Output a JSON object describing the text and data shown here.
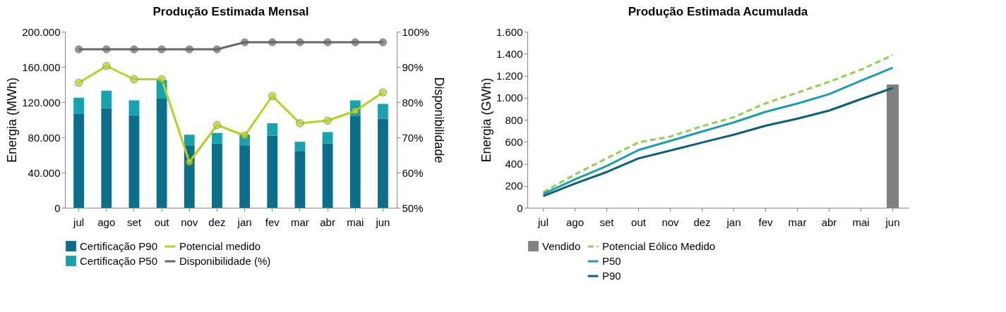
{
  "chart_data": [
    {
      "type": "bar",
      "title": "Produção Estimada Mensal",
      "ylabel": "Energia (MWh)",
      "y2label": "Disponibilidade",
      "categories": [
        "jul",
        "ago",
        "set",
        "out",
        "nov",
        "dez",
        "jan",
        "fev",
        "mar",
        "abr",
        "mai",
        "jun"
      ],
      "stacked": true,
      "legend": "bottom",
      "ylim": [
        0,
        200000
      ],
      "yticks": [
        {
          "value": 0,
          "label": "0"
        },
        {
          "value": 40000,
          "label": "40.000"
        },
        {
          "value": 80000,
          "label": "80.000"
        },
        {
          "value": 120000,
          "label": "120.000"
        },
        {
          "value": 160000,
          "label": "160.000"
        },
        {
          "value": 200000,
          "label": "200.000"
        }
      ],
      "y2lim": [
        50,
        100
      ],
      "y2ticks": [
        {
          "value": 50,
          "label": "50%"
        },
        {
          "value": 60,
          "label": "60%"
        },
        {
          "value": 70,
          "label": "70%"
        },
        {
          "value": 80,
          "label": "80%"
        },
        {
          "value": 90,
          "label": "90%"
        },
        {
          "value": 100,
          "label": "100%"
        }
      ],
      "series": [
        {
          "name": "Certificação P90",
          "color": "#0a6f8a",
          "values": [
            107000,
            113000,
            105000,
            124000,
            71000,
            73000,
            71000,
            82000,
            64000,
            73000,
            104000,
            101000
          ]
        },
        {
          "name": "Certificação P50",
          "color": "#15a3b1",
          "values": [
            18000,
            20000,
            17000,
            21000,
            12000,
            12000,
            12000,
            14000,
            11000,
            13000,
            18000,
            17000
          ]
        },
        {
          "name": "Potencial medido",
          "type": "line",
          "marker": "circle",
          "color": "#b5d31a",
          "values": [
            142000,
            161000,
            146000,
            146000,
            52000,
            94000,
            82000,
            127000,
            96000,
            99000,
            110000,
            131000
          ]
        },
        {
          "name": "Disponibilidade (%)",
          "type": "line",
          "marker": "circle",
          "axis": "y2",
          "color": "#666666",
          "values": [
            95,
            95,
            95,
            95,
            95,
            95,
            97,
            97,
            97,
            97,
            97,
            97
          ]
        }
      ]
    },
    {
      "type": "line",
      "title": "Produção Estimada Acumulada",
      "ylabel": "Energia (GWh)",
      "categories": [
        "jul",
        "ago",
        "set",
        "out",
        "nov",
        "dez",
        "jan",
        "fev",
        "mar",
        "abr",
        "mai",
        "jun"
      ],
      "legend": "bottom",
      "ylim": [
        0,
        1600
      ],
      "yticks": [
        {
          "value": 0,
          "label": "0"
        },
        {
          "value": 200,
          "label": "200"
        },
        {
          "value": 400,
          "label": "400"
        },
        {
          "value": 600,
          "label": "600"
        },
        {
          "value": 800,
          "label": "800"
        },
        {
          "value": 1000,
          "label": "1.000"
        },
        {
          "value": 1200,
          "label": "1.200"
        },
        {
          "value": 1400,
          "label": "1.400"
        },
        {
          "value": 1600,
          "label": "1.600"
        }
      ],
      "series": [
        {
          "name": "Vendido",
          "type": "bar",
          "color": "#808080",
          "values": [
            null,
            null,
            null,
            null,
            null,
            null,
            null,
            null,
            null,
            null,
            null,
            1120
          ]
        },
        {
          "name": "Potencial Eólico Medido",
          "line_style": "dashed",
          "color": "#92d050",
          "values": [
            142,
            303,
            449,
            595,
            647,
            741,
            823,
            950,
            1046,
            1145,
            1255,
            1386
          ]
        },
        {
          "name": "P50",
          "color": "#1a9fb0",
          "values": [
            125,
            258,
            380,
            525,
            608,
            693,
            776,
            872,
            947,
            1033,
            1155,
            1273
          ]
        },
        {
          "name": "P90",
          "color": "#0b5f7a",
          "values": [
            107,
            220,
            325,
            449,
            520,
            593,
            664,
            746,
            810,
            883,
            987,
            1088
          ]
        }
      ]
    }
  ]
}
